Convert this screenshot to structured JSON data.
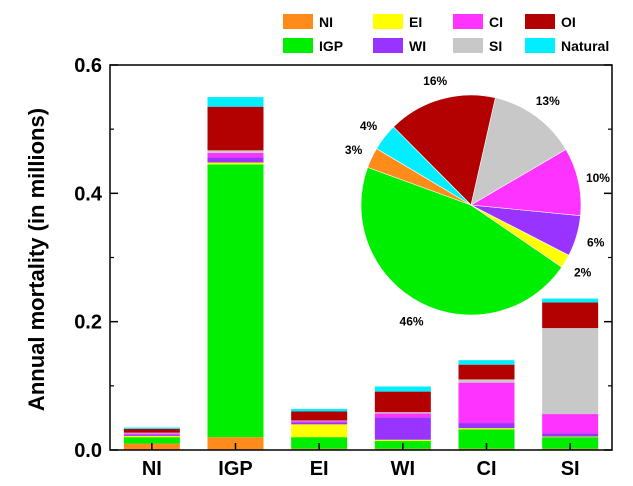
{
  "chart_data": [
    {
      "type": "bar",
      "stacked": true,
      "categories": [
        "NI",
        "IGP",
        "EI",
        "WI",
        "CI",
        "SI"
      ],
      "ylabel": "Annual mortality (in millions)",
      "xlabel": "",
      "ylim": [
        0,
        0.6
      ],
      "yticks": [
        "0.0",
        "0.2",
        "0.4",
        "0.6"
      ],
      "series": [
        {
          "name": "NI",
          "color": "#ff8c1a",
          "values": [
            0.01,
            0.02,
            0.002,
            0.002,
            0.002,
            0.002
          ]
        },
        {
          "name": "IGP",
          "color": "#00ee00",
          "values": [
            0.01,
            0.425,
            0.018,
            0.012,
            0.03,
            0.018
          ]
        },
        {
          "name": "EI",
          "color": "#ffff00",
          "values": [
            0.002,
            0.003,
            0.02,
            0.002,
            0.002,
            0.001
          ]
        },
        {
          "name": "WI",
          "color": "#9933ff",
          "values": [
            0.002,
            0.008,
            0.003,
            0.035,
            0.008,
            0.005
          ]
        },
        {
          "name": "CI",
          "color": "#ff33ff",
          "values": [
            0.002,
            0.007,
            0.002,
            0.006,
            0.063,
            0.03
          ]
        },
        {
          "name": "SI",
          "color": "#c8c8c8",
          "values": [
            0.001,
            0.004,
            0.001,
            0.002,
            0.005,
            0.134
          ]
        },
        {
          "name": "OI",
          "color": "#b30000",
          "values": [
            0.006,
            0.068,
            0.014,
            0.032,
            0.023,
            0.04
          ]
        },
        {
          "name": "Natural",
          "color": "#00eeff",
          "values": [
            0.002,
            0.015,
            0.004,
            0.008,
            0.007,
            0.006
          ]
        }
      ],
      "legend": {
        "placement": "top-right"
      }
    },
    {
      "type": "pie",
      "placement": "inset-top-right",
      "slices": [
        {
          "name": "IGP",
          "value": 46,
          "label": "46%",
          "color": "#00ee00"
        },
        {
          "name": "EI",
          "value": 2,
          "label": "2%",
          "color": "#ffff00"
        },
        {
          "name": "WI",
          "value": 6,
          "label": "6%",
          "color": "#9933ff"
        },
        {
          "name": "CI",
          "value": 10,
          "label": "10%",
          "color": "#ff33ff"
        },
        {
          "name": "SI",
          "value": 13,
          "label": "13%",
          "color": "#c8c8c8"
        },
        {
          "name": "OI",
          "value": 16,
          "label": "16%",
          "color": "#b30000"
        },
        {
          "name": "Natural",
          "value": 4,
          "label": "4%",
          "color": "#00eeff"
        },
        {
          "name": "NI",
          "value": 3,
          "label": "3%",
          "color": "#ff8c1a"
        }
      ]
    }
  ]
}
